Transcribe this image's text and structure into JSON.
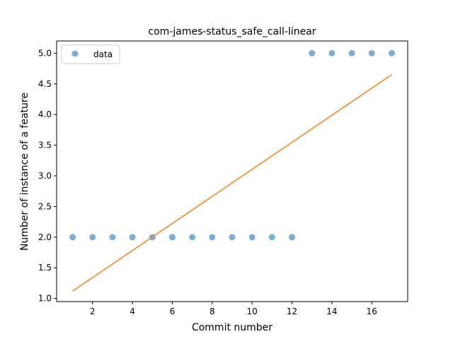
{
  "chart_data": {
    "type": "scatter",
    "title": "com-james-status_safe_call-linear",
    "xlabel": "Commit number",
    "ylabel": "Number of instance of a feature",
    "xlim": [
      0.2,
      17.8
    ],
    "ylim": [
      0.95,
      5.2
    ],
    "xticks": [
      2,
      4,
      6,
      8,
      10,
      12,
      14,
      16
    ],
    "yticks": [
      1.0,
      1.5,
      2.0,
      2.5,
      3.0,
      3.5,
      4.0,
      4.5,
      5.0
    ],
    "ytick_labels": [
      "1.0",
      "1.5",
      "2.0",
      "2.5",
      "3.0",
      "3.5",
      "4.0",
      "4.5",
      "5.0"
    ],
    "grid": false,
    "legend": {
      "position": "top-left",
      "entries": [
        "data"
      ]
    },
    "series": [
      {
        "name": "data",
        "kind": "scatter",
        "color": "#1f77b4",
        "x": [
          1,
          2,
          3,
          4,
          5,
          6,
          7,
          8,
          9,
          10,
          11,
          12,
          13,
          14,
          15,
          16,
          17
        ],
        "y": [
          2,
          2,
          2,
          2,
          2,
          2,
          2,
          2,
          2,
          2,
          2,
          2,
          5,
          5,
          5,
          5,
          5
        ]
      },
      {
        "kind": "line",
        "color": "#ff7f0e",
        "x": [
          1,
          17
        ],
        "y": [
          1.12,
          4.65
        ]
      }
    ]
  }
}
